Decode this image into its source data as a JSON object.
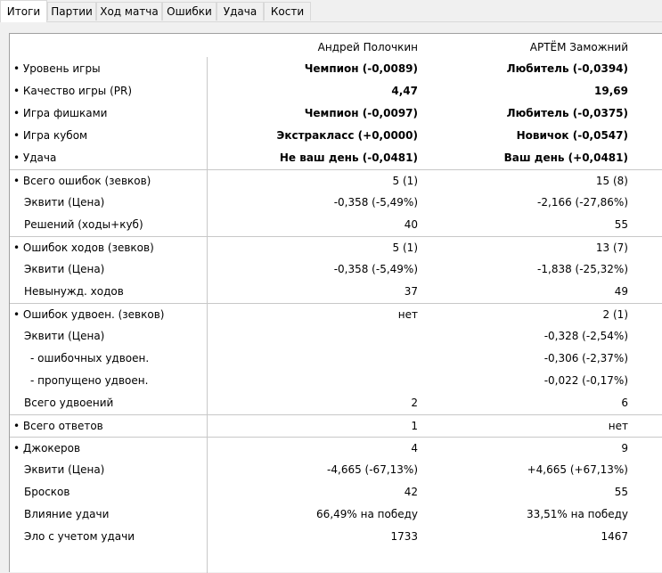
{
  "tabs": [
    {
      "label": "Итоги",
      "active": true
    },
    {
      "label": "Партии",
      "active": false
    },
    {
      "label": "Ход матча",
      "active": false
    },
    {
      "label": "Ошибки",
      "active": false
    },
    {
      "label": "Удача",
      "active": false
    },
    {
      "label": "Кости",
      "active": false
    }
  ],
  "players": {
    "p1": "Андрей Полочкин",
    "p2": "АРТЁМ Заможний"
  },
  "rows": [
    {
      "label": "• Уровень игры",
      "p1": "Чемпион (-0,0089)",
      "p2": "Любитель (-0,0394)",
      "bold": true,
      "indent": 0
    },
    {
      "label": "• Качество игры (PR)",
      "p1": "4,47",
      "p2": "19,69",
      "bold": true,
      "indent": 0
    },
    {
      "label": "• Игра фишками",
      "p1": "Чемпион (-0,0097)",
      "p2": "Любитель (-0,0375)",
      "bold": true,
      "indent": 0
    },
    {
      "label": "• Игра кубом",
      "p1": "Экстракласс (+0,0000)",
      "p2": "Новичок (-0,0547)",
      "bold": true,
      "indent": 0
    },
    {
      "label": "• Удача",
      "p1": "Не ваш день (-0,0481)",
      "p2": "Ваш день (+0,0481)",
      "bold": true,
      "indent": 0
    },
    {
      "label": "• Всего ошибок (зевков)",
      "p1": "5 (1)",
      "p2": "15 (8)",
      "bold": false,
      "indent": 0,
      "sep": true
    },
    {
      "label": "Эквити (Цена)",
      "p1": "-0,358 (-5,49%)",
      "p2": "-2,166 (-27,86%)",
      "bold": false,
      "indent": 1
    },
    {
      "label": "Решений (ходы+куб)",
      "p1": "40",
      "p2": "55",
      "bold": false,
      "indent": 1
    },
    {
      "label": "• Ошибок ходов (зевков)",
      "p1": "5 (1)",
      "p2": "13 (7)",
      "bold": false,
      "indent": 0,
      "sep": true
    },
    {
      "label": "Эквити (Цена)",
      "p1": "-0,358 (-5,49%)",
      "p2": "-1,838 (-25,32%)",
      "bold": false,
      "indent": 1
    },
    {
      "label": "Невынужд. ходов",
      "p1": "37",
      "p2": "49",
      "bold": false,
      "indent": 1
    },
    {
      "label": "• Ошибок удвоен. (зевков)",
      "p1": "нет",
      "p2": "2 (1)",
      "bold": false,
      "indent": 0,
      "sep": true
    },
    {
      "label": "Эквити (Цена)",
      "p1": "",
      "p2": "-0,328 (-2,54%)",
      "bold": false,
      "indent": 1
    },
    {
      "label": "- ошибочных удвоен.",
      "p1": "",
      "p2": "-0,306 (-2,37%)",
      "bold": false,
      "indent": 2
    },
    {
      "label": "- пропущено удвоен.",
      "p1": "",
      "p2": "-0,022 (-0,17%)",
      "bold": false,
      "indent": 2
    },
    {
      "label": "Всего удвоений",
      "p1": "2",
      "p2": "6",
      "bold": false,
      "indent": 1
    },
    {
      "label": "•  Всего ответов",
      "p1": "1",
      "p2": "нет",
      "bold": false,
      "indent": 0,
      "sep": true
    },
    {
      "label": "• Джокеров",
      "p1": "4",
      "p2": "9",
      "bold": false,
      "indent": 0,
      "sep": true
    },
    {
      "label": "Эквити (Цена)",
      "p1": "-4,665 (-67,13%)",
      "p2": "+4,665 (+67,13%)",
      "bold": false,
      "indent": 1
    },
    {
      "label": "Бросков",
      "p1": "42",
      "p2": "55",
      "bold": false,
      "indent": 1
    },
    {
      "label": "Влияние удачи",
      "p1": "66,49% на победу",
      "p2": "33,51% на победу",
      "bold": false,
      "indent": 1
    },
    {
      "label": "Эло с учетом удачи",
      "p1": "1733",
      "p2": "1467",
      "bold": false,
      "indent": 1
    }
  ]
}
